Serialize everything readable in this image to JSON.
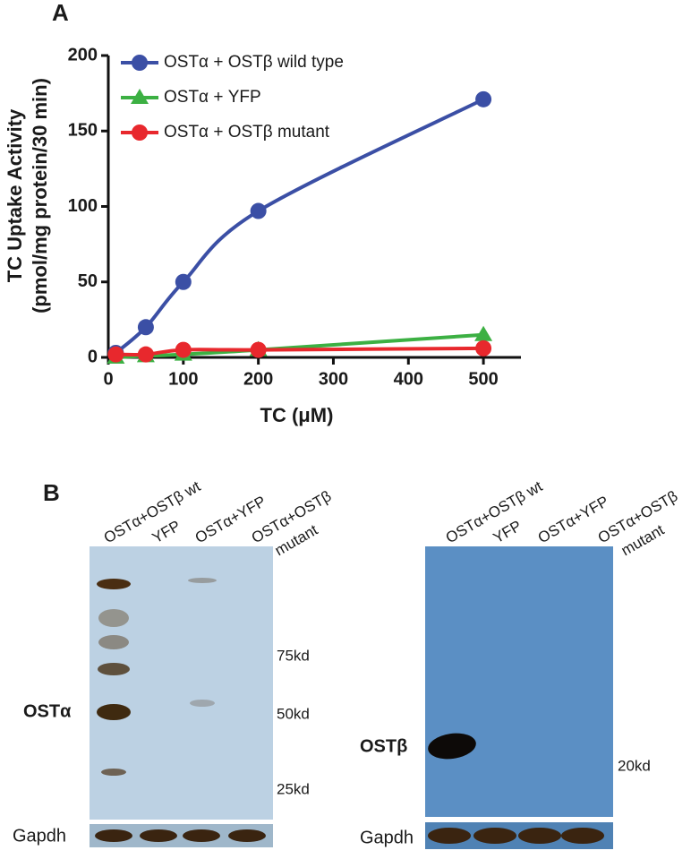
{
  "chart_data": {
    "type": "line",
    "panel_label": "A",
    "x_label": "TC (μM)",
    "y_label": [
      "TC Uptake Activity",
      "(pmol/mg protein/30 min)"
    ],
    "x": [
      10,
      50,
      100,
      200,
      500
    ],
    "series": [
      {
        "name": "OSTα + OSTβ wild type",
        "color": "#3b4fa5",
        "marker": "circle",
        "values": [
          3,
          20,
          50,
          97,
          171
        ]
      },
      {
        "name": "OSTα + YFP",
        "color": "#3cb043",
        "marker": "triangle",
        "values": [
          0,
          1,
          2,
          5,
          15
        ]
      },
      {
        "name": "OSTα + OSTβ mutant",
        "color": "#e8282d",
        "marker": "circle",
        "values": [
          2,
          2,
          5,
          5,
          6
        ]
      }
    ],
    "xlim": [
      0,
      550
    ],
    "xticks": [
      0,
      100,
      200,
      300,
      400,
      500
    ],
    "ylim": [
      0,
      200
    ],
    "yticks": [
      0,
      50,
      100,
      150,
      200
    ],
    "legend": "top-left",
    "grid": false
  },
  "panel_b": {
    "panel_label": "B",
    "left_blot": {
      "lanes": [
        [
          "OSTα+OSTβ wt"
        ],
        [
          "YFP"
        ],
        [
          "OSTα+YFP"
        ],
        [
          "OSTα+OSTβ",
          "mutant"
        ]
      ],
      "protein": "OSTα",
      "size_markers": [
        "75kd",
        "50kd",
        "25kd"
      ],
      "loading": "Gapdh"
    },
    "right_blot": {
      "lanes": [
        [
          "OSTα+OSTβ wt"
        ],
        [
          "YFP"
        ],
        [
          "OSTα+YFP"
        ],
        [
          "OSTα+OSTβ",
          "mutant"
        ]
      ],
      "protein": "OSTβ",
      "size_markers": [
        "20kd"
      ],
      "loading": "Gapdh"
    }
  }
}
